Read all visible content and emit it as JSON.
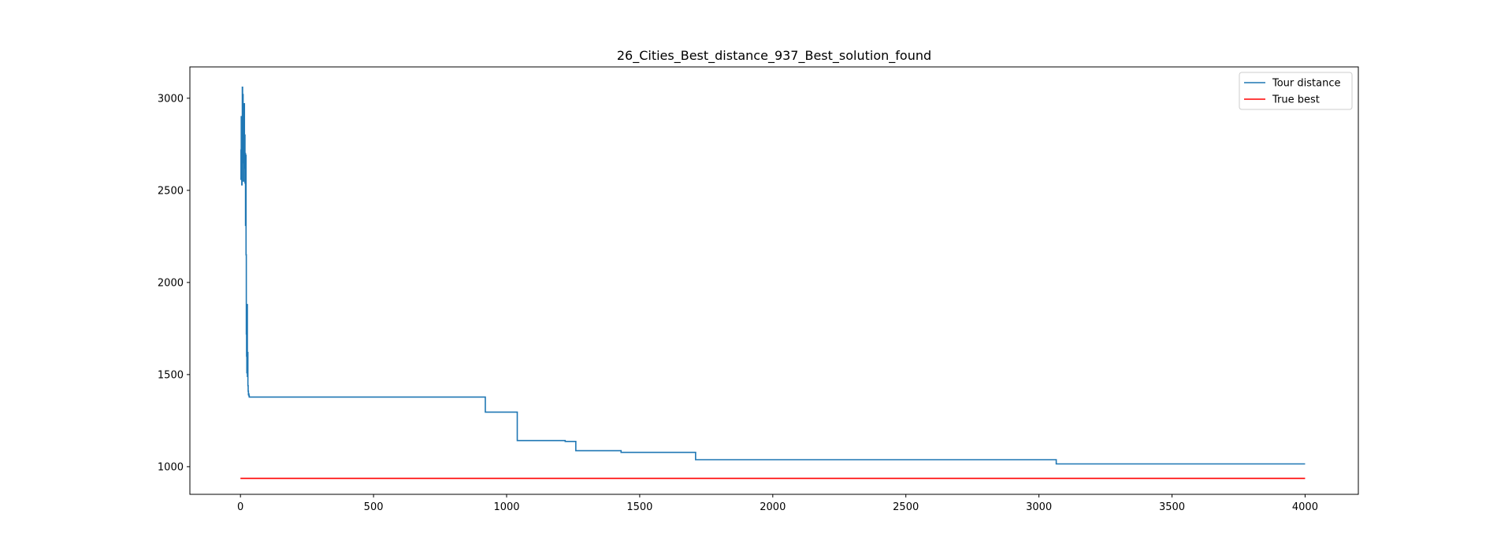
{
  "chart_data": {
    "type": "line",
    "title": "26_Cities_Best_distance_937_Best_solution_found",
    "xlabel": "",
    "ylabel": "",
    "xlim": [
      -190,
      4200
    ],
    "ylim": [
      850,
      3170
    ],
    "x_ticks": [
      0,
      500,
      1000,
      1500,
      2000,
      2500,
      3000,
      3500,
      4000
    ],
    "y_ticks": [
      1000,
      1500,
      2000,
      2500,
      3000
    ],
    "grid": false,
    "legend_position": "top-right",
    "series": [
      {
        "name": "Tour distance",
        "color": "#1f77b4",
        "step": true,
        "x": [
          0,
          2,
          3,
          4,
          5,
          6,
          7,
          8,
          9,
          10,
          11,
          12,
          13,
          14,
          15,
          16,
          17,
          18,
          19,
          20,
          21,
          22,
          23,
          24,
          25,
          26,
          27,
          28,
          29,
          30,
          31,
          32,
          33,
          35,
          920,
          1040,
          1220,
          1260,
          1430,
          1710,
          3065,
          4000
        ],
        "y": [
          2720,
          2560,
          2900,
          2700,
          2530,
          2840,
          3060,
          2650,
          3020,
          2720,
          2550,
          2900,
          2780,
          2970,
          2620,
          2800,
          2540,
          2700,
          2310,
          2690,
          2150,
          1720,
          1600,
          1510,
          1880,
          1490,
          1620,
          1440,
          1410,
          1390,
          1395,
          1385,
          1378,
          1378,
          1296,
          1142,
          1137,
          1087,
          1078,
          1038,
          1015,
          1015
        ]
      },
      {
        "name": "True best",
        "color": "#ff0000",
        "step": false,
        "x": [
          0,
          4000
        ],
        "y": [
          937,
          937
        ]
      }
    ]
  }
}
